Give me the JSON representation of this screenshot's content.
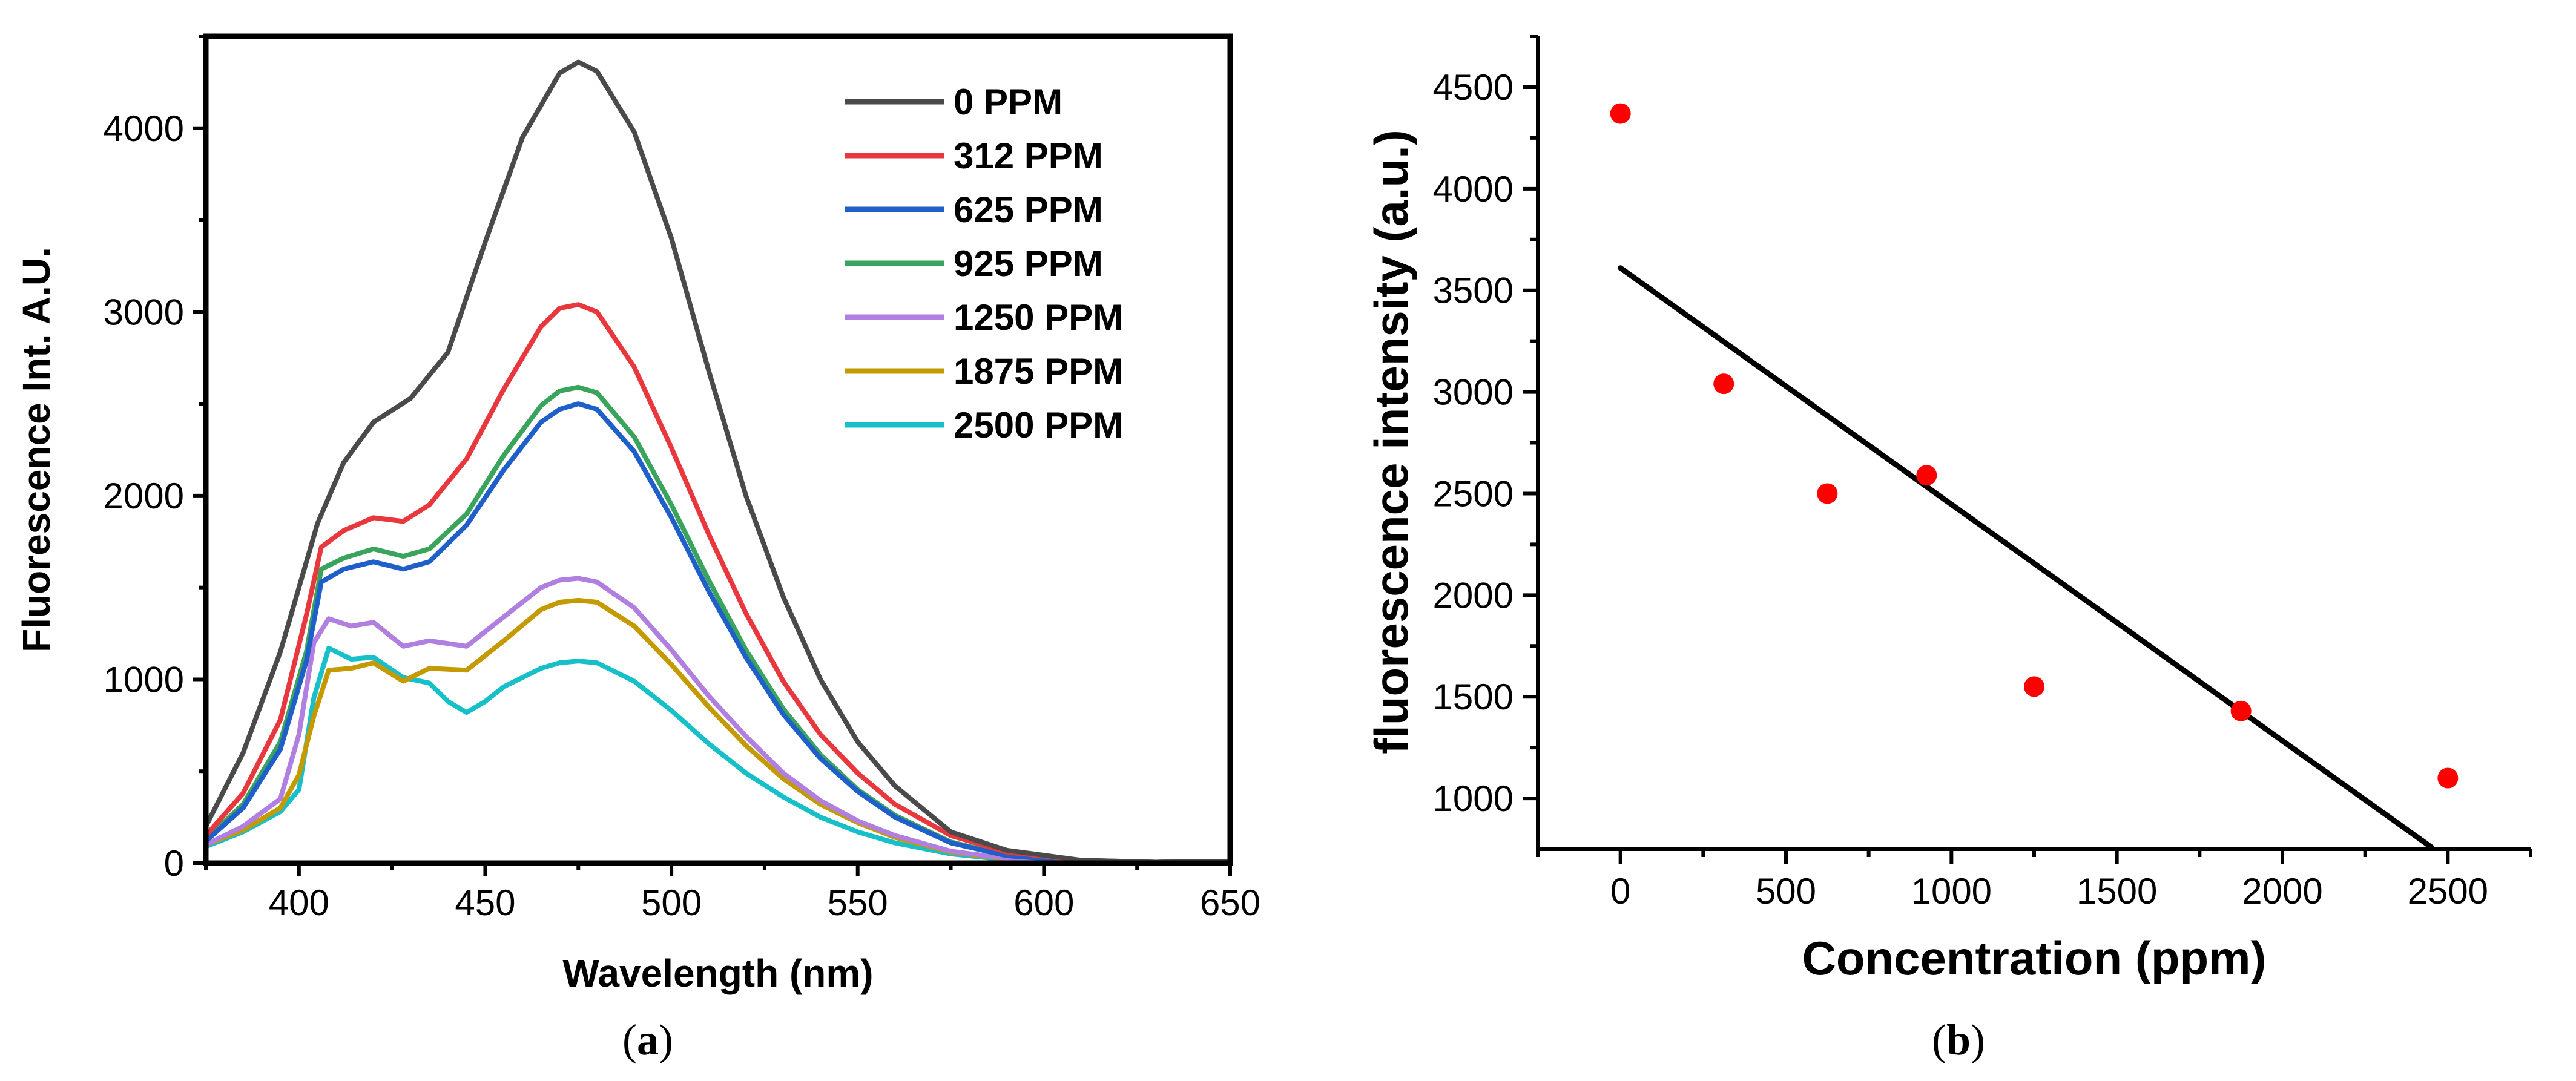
{
  "chart_data": [
    {
      "panel": "a",
      "type": "line",
      "xlabel": "Wavelength (nm)",
      "ylabel": "Fluorescence Int. A.U.",
      "xlim": [
        375,
        650
      ],
      "ylim": [
        0,
        4500
      ],
      "xticks": [
        400,
        450,
        500,
        550,
        600,
        650
      ],
      "yticks": [
        0,
        1000,
        2000,
        3000,
        4000
      ],
      "legend_position": "top-right",
      "series": [
        {
          "name": "0 PPM",
          "color": "#4a4a4a",
          "x": [
            375,
            385,
            395,
            405,
            412,
            420,
            430,
            440,
            450,
            460,
            470,
            475,
            480,
            490,
            500,
            510,
            520,
            530,
            540,
            550,
            560,
            575,
            590,
            610,
            630,
            650
          ],
          "y": [
            200,
            600,
            1150,
            1850,
            2180,
            2400,
            2530,
            2780,
            3380,
            3950,
            4300,
            4360,
            4310,
            3980,
            3400,
            2680,
            2000,
            1450,
            1000,
            660,
            420,
            170,
            70,
            15,
            5,
            10
          ]
        },
        {
          "name": "312 PPM",
          "color": "#e8383d",
          "x": [
            375,
            385,
            395,
            402,
            406,
            412,
            420,
            428,
            435,
            445,
            455,
            465,
            470,
            475,
            480,
            490,
            500,
            510,
            520,
            530,
            540,
            550,
            560,
            575,
            590,
            610,
            630,
            650
          ],
          "y": [
            150,
            380,
            780,
            1350,
            1720,
            1810,
            1880,
            1860,
            1950,
            2200,
            2580,
            2920,
            3020,
            3040,
            3000,
            2700,
            2260,
            1790,
            1360,
            990,
            700,
            490,
            320,
            150,
            60,
            15,
            5,
            10
          ]
        },
        {
          "name": "625 PPM",
          "color": "#1f5fc9",
          "x": [
            375,
            385,
            395,
            402,
            406,
            412,
            420,
            428,
            435,
            445,
            455,
            465,
            470,
            475,
            480,
            490,
            500,
            510,
            520,
            530,
            540,
            550,
            560,
            575,
            590,
            610,
            630,
            650
          ],
          "y": [
            120,
            300,
            620,
            1100,
            1530,
            1600,
            1640,
            1600,
            1640,
            1840,
            2140,
            2400,
            2470,
            2500,
            2470,
            2240,
            1880,
            1480,
            1120,
            810,
            570,
            390,
            250,
            110,
            40,
            10,
            5,
            10
          ]
        },
        {
          "name": "925 PPM",
          "color": "#3aa35c",
          "x": [
            375,
            385,
            395,
            402,
            406,
            412,
            420,
            428,
            435,
            445,
            455,
            465,
            470,
            475,
            480,
            490,
            500,
            510,
            520,
            530,
            540,
            550,
            560,
            575,
            590,
            610,
            630,
            650
          ],
          "y": [
            130,
            320,
            660,
            1150,
            1600,
            1660,
            1710,
            1670,
            1710,
            1900,
            2220,
            2490,
            2570,
            2590,
            2560,
            2320,
            1950,
            1540,
            1160,
            840,
            590,
            400,
            260,
            115,
            42,
            10,
            5,
            10
          ]
        },
        {
          "name": "1250 PPM",
          "color": "#b07fe0",
          "x": [
            375,
            385,
            395,
            400,
            404,
            408,
            414,
            420,
            428,
            435,
            445,
            455,
            465,
            470,
            475,
            480,
            490,
            500,
            510,
            520,
            530,
            540,
            550,
            560,
            575,
            590,
            610,
            630,
            650
          ],
          "y": [
            100,
            200,
            350,
            700,
            1200,
            1330,
            1290,
            1310,
            1180,
            1210,
            1180,
            1340,
            1500,
            1540,
            1550,
            1530,
            1390,
            1160,
            910,
            690,
            490,
            340,
            230,
            150,
            65,
            25,
            8,
            5,
            10
          ]
        },
        {
          "name": "1875 PPM",
          "color": "#c49a00",
          "x": [
            375,
            385,
            395,
            400,
            404,
            408,
            414,
            420,
            428,
            435,
            445,
            455,
            465,
            470,
            475,
            480,
            490,
            500,
            510,
            520,
            530,
            540,
            550,
            560,
            575,
            590,
            610,
            630,
            650
          ],
          "y": [
            100,
            180,
            300,
            480,
            800,
            1050,
            1060,
            1090,
            990,
            1060,
            1050,
            1210,
            1380,
            1420,
            1430,
            1420,
            1290,
            1080,
            850,
            640,
            460,
            320,
            220,
            140,
            60,
            22,
            8,
            5,
            10
          ]
        },
        {
          "name": "2500 PPM",
          "color": "#17c0c8",
          "x": [
            375,
            385,
            395,
            400,
            404,
            408,
            414,
            420,
            428,
            435,
            440,
            445,
            450,
            455,
            465,
            470,
            475,
            480,
            490,
            500,
            510,
            520,
            530,
            540,
            550,
            560,
            575,
            590,
            610,
            630,
            650
          ],
          "y": [
            90,
            170,
            280,
            400,
            900,
            1170,
            1110,
            1120,
            1010,
            980,
            880,
            820,
            880,
            960,
            1060,
            1090,
            1100,
            1090,
            990,
            830,
            650,
            490,
            360,
            250,
            170,
            110,
            50,
            18,
            6,
            5,
            10
          ]
        }
      ]
    },
    {
      "panel": "b",
      "type": "scatter",
      "xlabel": "Concentration (ppm)",
      "ylabel": "fluorescence intensity (a.u.)",
      "xlim": [
        -250,
        2750
      ],
      "ylim": [
        750,
        4750
      ],
      "xticks": [
        0,
        500,
        1000,
        1500,
        2000,
        2500
      ],
      "yticks": [
        1000,
        1500,
        2000,
        2500,
        3000,
        3500,
        4000,
        4500
      ],
      "points_color": "#ff0000",
      "points": {
        "x": [
          0,
          312,
          625,
          925,
          1250,
          1875,
          2500
        ],
        "y": [
          4370,
          3040,
          2500,
          2590,
          1550,
          1430,
          1100
        ]
      },
      "fit_line": {
        "color": "#000000",
        "x": [
          0,
          2450
        ],
        "y": [
          3610,
          760
        ]
      }
    }
  ],
  "captions": {
    "a": "(a)",
    "b": "(b)"
  }
}
